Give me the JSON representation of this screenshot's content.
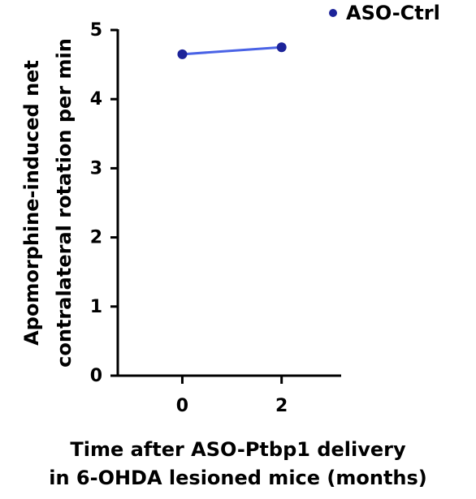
{
  "chart_data": {
    "type": "line",
    "y_label": [
      "Apomorphine-induced net",
      "contralateral rotation per min"
    ],
    "x_label": [
      "Time after ASO-Ptbp1 delivery",
      "in 6-OHDA lesioned mice (months)"
    ],
    "x": [
      0,
      2
    ],
    "series": [
      {
        "name": "ASO-Ctrl",
        "color": "#1c2399",
        "line_color": "#4a63e6",
        "values": [
          4.65,
          4.75
        ]
      }
    ],
    "xlim": [
      -1.3,
      3.2
    ],
    "xticks": [
      0,
      2
    ],
    "ylim": [
      0,
      5
    ],
    "yticks": [
      0,
      1,
      2,
      3,
      4,
      5
    ]
  }
}
